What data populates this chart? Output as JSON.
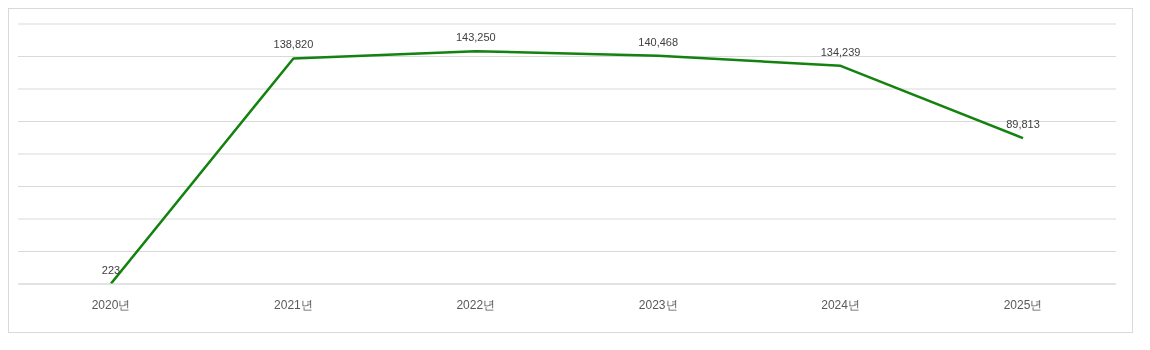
{
  "chart_data": {
    "type": "line",
    "categories": [
      "2020년",
      "2021년",
      "2022년",
      "2023년",
      "2024년",
      "2025년"
    ],
    "series": [
      {
        "color": "#13820f",
        "values": [
          223,
          138820,
          143250,
          140468,
          134239,
          89813
        ],
        "value_labels": [
          "223",
          "138,820",
          "143,250",
          "140,468",
          "134,239",
          "89,813"
        ]
      }
    ],
    "yticks": [
      {
        "value": 0,
        "label": null
      },
      {
        "value": 20000,
        "label": null
      },
      {
        "value": 40000,
        "label": null
      },
      {
        "value": 60000,
        "label": null
      },
      {
        "value": 80000,
        "label": null
      },
      {
        "value": 100000,
        "label": null
      },
      {
        "value": 120000,
        "label": null
      },
      {
        "value": 140000,
        "label": null
      },
      {
        "value": 160000,
        "label": null
      }
    ],
    "tick_labels": "x",
    "grid": "y",
    "marker": "none",
    "line_style": "solid",
    "legend": false
  }
}
